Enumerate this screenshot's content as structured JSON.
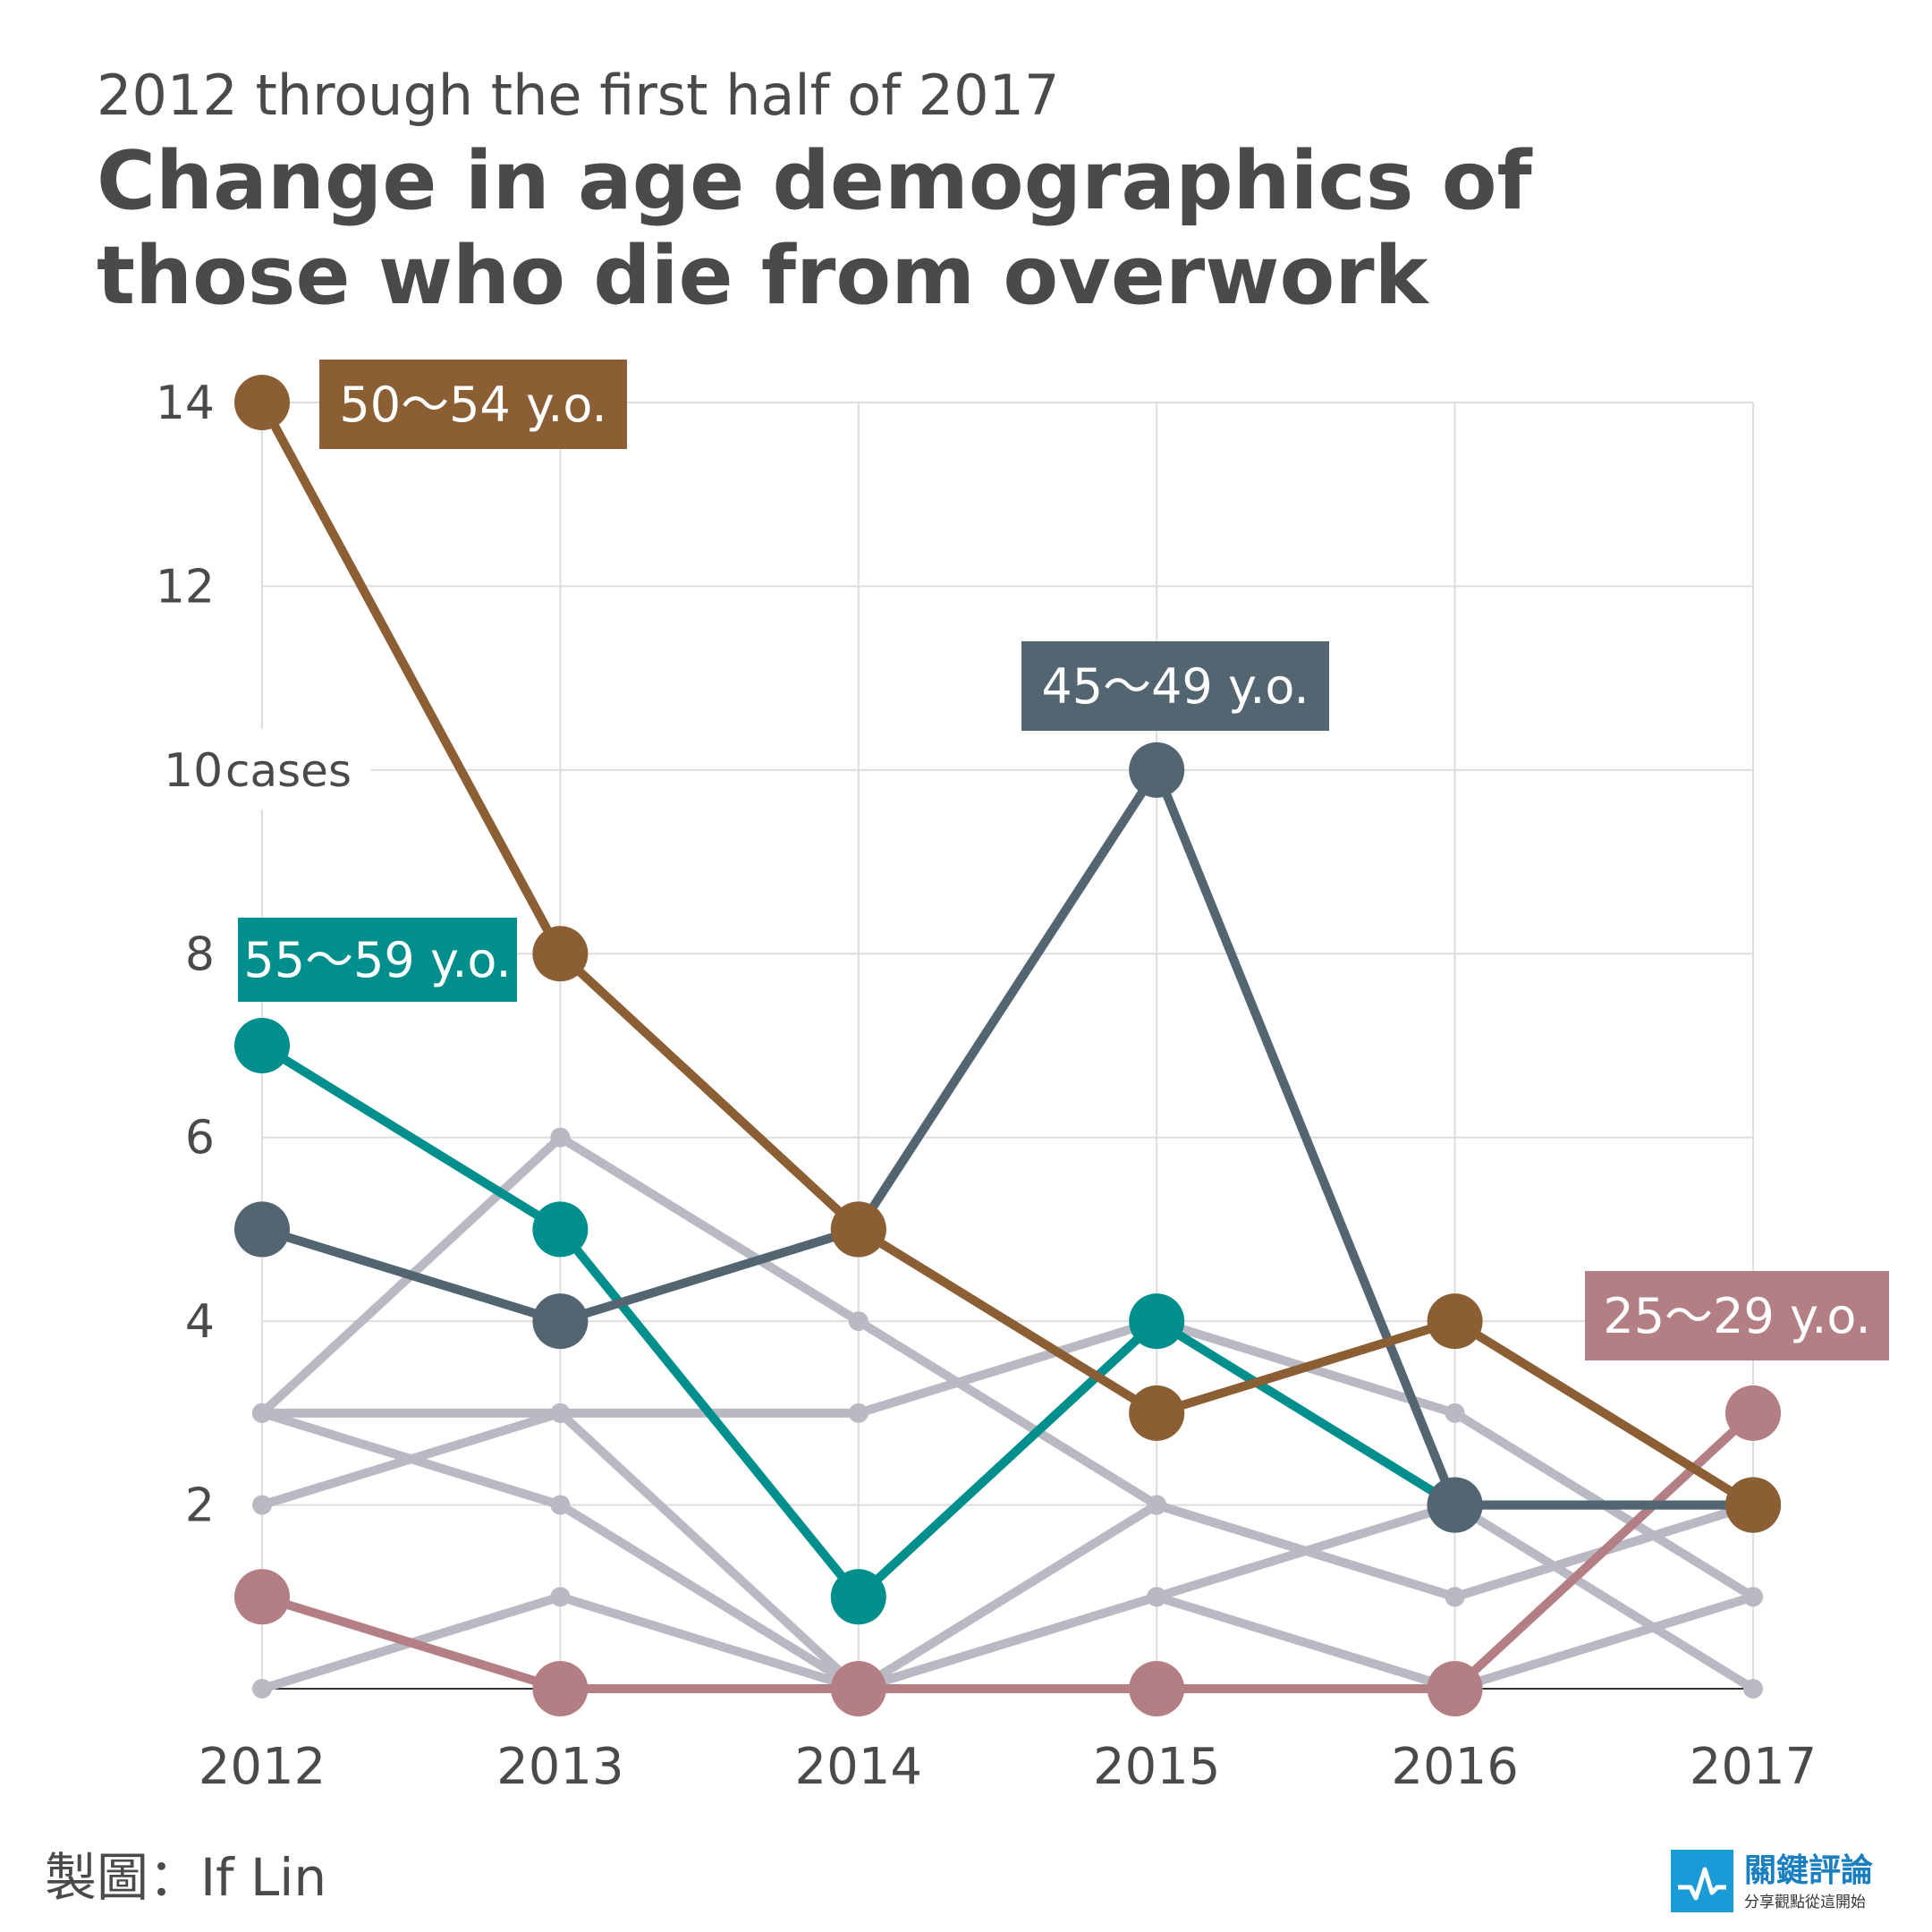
{
  "header": {
    "subtitle": "2012 through the first half of 2017",
    "title": "Change in age demographics of those who die from overwork"
  },
  "credit": "製圖：If Lin",
  "logo": {
    "name": "關鍵評論",
    "tagline": "分享觀點從這開始"
  },
  "chart_data": {
    "type": "line",
    "title": "Change in age demographics of those who die from overwork",
    "subtitle": "2012 through the first half of 2017",
    "x": [
      "2012",
      "2013",
      "2014",
      "2015",
      "2016",
      "2017"
    ],
    "ylim": [
      0,
      14
    ],
    "yticks": [
      {
        "value": 14,
        "label": "14"
      },
      {
        "value": 12,
        "label": "12"
      },
      {
        "value": 10,
        "label": "10",
        "unit": "cases"
      },
      {
        "value": 8,
        "label": "8"
      },
      {
        "value": 6,
        "label": "6"
      },
      {
        "value": 4,
        "label": "4"
      },
      {
        "value": 2,
        "label": "2"
      }
    ],
    "grid": true,
    "background_series_color": "#b9b9c4",
    "background_series": [
      {
        "values": [
          3,
          6,
          4,
          2,
          1,
          2
        ]
      },
      {
        "values": [
          3,
          3,
          3,
          4,
          3,
          1
        ]
      },
      {
        "values": [
          2,
          3,
          0,
          1,
          2,
          0
        ]
      },
      {
        "values": [
          3,
          2,
          0,
          2,
          1,
          2
        ]
      },
      {
        "values": [
          0,
          1,
          0,
          1,
          0,
          1
        ]
      }
    ],
    "series": [
      {
        "name": "25～29 y.o.",
        "color": "#b47f84",
        "values": [
          1,
          0,
          0,
          0,
          0,
          3
        ]
      },
      {
        "name": "55～59 y.o.",
        "color": "#008f8c",
        "values": [
          7,
          5,
          1,
          4,
          2,
          2
        ]
      },
      {
        "name": "45～49 y.o.",
        "color": "#546572",
        "values": [
          5,
          4,
          5,
          10,
          2,
          2
        ]
      },
      {
        "name": "50～54 y.o.",
        "color": "#8b5e33",
        "values": [
          14,
          8,
          5,
          3,
          4,
          2
        ]
      }
    ]
  }
}
